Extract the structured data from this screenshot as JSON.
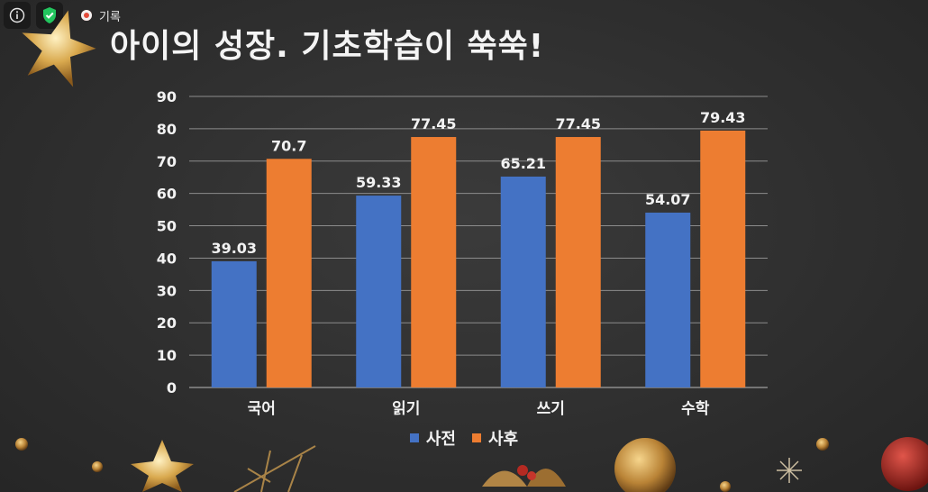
{
  "toolbar": {
    "info_icon": "info-icon",
    "shield_icon": "shield-check-icon",
    "record_label": "기록"
  },
  "slide": {
    "title": "아이의 성장. 기초학습이 쑥쑥!"
  },
  "chart_data": {
    "type": "bar",
    "categories": [
      "국어",
      "읽기",
      "쓰기",
      "수학"
    ],
    "series": [
      {
        "name": "사전",
        "values": [
          39.03,
          59.33,
          65.21,
          54.07
        ],
        "labels": [
          "39.03",
          "59.33",
          "65.21",
          "54.07"
        ],
        "color": "#4472c4"
      },
      {
        "name": "사후",
        "values": [
          70.7,
          77.45,
          77.45,
          79.43
        ],
        "labels": [
          "70.7",
          "77.45",
          "77.45",
          "79.43"
        ],
        "color": "#ed7d31"
      }
    ],
    "ylim": [
      0,
      90
    ],
    "yticks": [
      0,
      10,
      20,
      30,
      40,
      50,
      60,
      70,
      80,
      90
    ],
    "grid": true,
    "legend_position": "bottom"
  },
  "colors": {
    "gridline": "#8c8c8c",
    "text": "#f2f2f2"
  }
}
